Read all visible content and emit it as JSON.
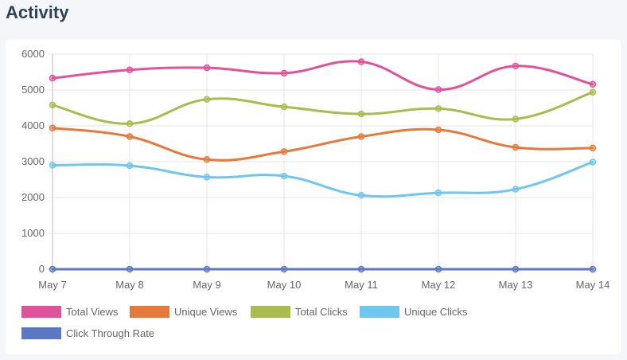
{
  "page": {
    "title": "Activity"
  },
  "chart_data": {
    "type": "line",
    "title": "",
    "xlabel": "",
    "ylabel": "",
    "categories": [
      "May 7",
      "May 8",
      "May 9",
      "May 10",
      "May 11",
      "May 12",
      "May 13",
      "May 14"
    ],
    "ylim": [
      0,
      6000
    ],
    "yticks": [
      0,
      1000,
      2000,
      3000,
      4000,
      5000,
      6000
    ],
    "grid": true,
    "legend_position": "bottom-left",
    "series": [
      {
        "name": "Total Views",
        "color": "#e0539a",
        "values": [
          5330,
          5560,
          5620,
          5470,
          5790,
          5010,
          5670,
          5160
        ]
      },
      {
        "name": "Unique Views",
        "color": "#e57a3a",
        "values": [
          3940,
          3700,
          3060,
          3280,
          3700,
          3890,
          3400,
          3380
        ]
      },
      {
        "name": "Total Clicks",
        "color": "#a9bc4e",
        "values": [
          4580,
          4060,
          4740,
          4530,
          4330,
          4480,
          4190,
          4940
        ]
      },
      {
        "name": "Unique Clicks",
        "color": "#6fc6ef",
        "values": [
          2900,
          2890,
          2570,
          2600,
          2060,
          2130,
          2230,
          2990
        ]
      },
      {
        "name": "Click Through Rate",
        "color": "#5a78c3",
        "values": [
          0,
          0,
          0,
          0,
          0,
          0,
          0,
          0
        ]
      }
    ]
  }
}
